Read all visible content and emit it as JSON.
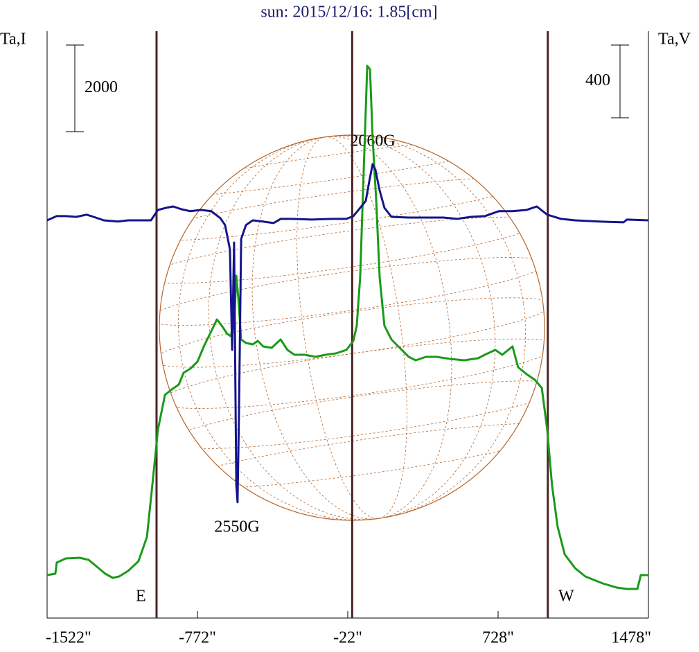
{
  "chart_data": {
    "type": "line",
    "title": "sun: 2015/12/16: 1.85[cm]",
    "y_label": "Ta,I",
    "y2_label": "Ta,V",
    "xlim": [
      -1522,
      1478
    ],
    "xticks": [
      {
        "value": -1522,
        "label": "-1522\""
      },
      {
        "value": -772,
        "label": "-772\""
      },
      {
        "value": -22,
        "label": "-22\""
      },
      {
        "value": 728,
        "label": "728\""
      },
      {
        "value": 1478,
        "label": "1478\""
      }
    ],
    "ylim": [
      0,
      13552
    ],
    "y2lim": [
      -2191,
      1036
    ],
    "scale_bars": [
      {
        "axis": "y",
        "value": 2000
      },
      {
        "axis": "y2",
        "value": 400
      }
    ],
    "vlines": [
      -976,
      0,
      976
    ],
    "annotations": [
      "E",
      "W",
      "2060G",
      "2550G"
    ],
    "series": [
      {
        "name": "Ta,I",
        "color": "#1a9a1a",
        "x": [
          -1522,
          -1481,
          -1474,
          -1429,
          -1360,
          -1315,
          -1273,
          -1232,
          -1194,
          -1163,
          -1118,
          -1066,
          -1024,
          -997,
          -969,
          -934,
          -900,
          -865,
          -841,
          -807,
          -772,
          -737,
          -703,
          -675,
          -651,
          -623,
          -606,
          -589,
          -578,
          -568,
          -554,
          -530,
          -496,
          -471,
          -444,
          -402,
          -357,
          -323,
          -288,
          -236,
          -184,
          -133,
          -81,
          -29,
          6,
          23,
          40,
          57,
          75,
          89,
          102,
          120,
          137,
          161,
          196,
          230,
          282,
          317,
          368,
          420,
          489,
          559,
          628,
          662,
          714,
          749,
          800,
          828,
          870,
          911,
          946,
          973,
          997,
          1025,
          1060,
          1112,
          1163,
          1250,
          1319,
          1371,
          1423,
          1440,
          1478
        ],
        "values": [
          992,
          1024,
          1280,
          1376,
          1392,
          1344,
          1184,
          1024,
          928,
          960,
          1088,
          1312,
          1872,
          3072,
          4352,
          5152,
          5280,
          5392,
          5664,
          5760,
          5920,
          6304,
          6624,
          6896,
          6752,
          6560,
          6512,
          6752,
          7904,
          7392,
          6432,
          6352,
          6320,
          6400,
          6272,
          6240,
          6432,
          6192,
          6080,
          6080,
          6032,
          6080,
          6112,
          6192,
          6400,
          6752,
          7872,
          10272,
          12752,
          12672,
          11072,
          9632,
          7872,
          6752,
          6432,
          6272,
          6032,
          5952,
          6032,
          6032,
          5984,
          5952,
          6000,
          6080,
          6192,
          6080,
          6272,
          5792,
          5632,
          5504,
          5312,
          4352,
          3072,
          2112,
          1472,
          1152,
          960,
          800,
          704,
          672,
          672,
          992,
          992
        ]
      },
      {
        "name": "Ta,V",
        "color": "#14148c",
        "axis": "y2",
        "x": [
          -1522,
          -1474,
          -1429,
          -1377,
          -1325,
          -1290,
          -1239,
          -1169,
          -1118,
          -1066,
          -1004,
          -969,
          -928,
          -893,
          -852,
          -807,
          -755,
          -703,
          -658,
          -634,
          -610,
          -599,
          -589,
          -578,
          -572,
          -565,
          -554,
          -530,
          -496,
          -444,
          -392,
          -357,
          -305,
          -202,
          -98,
          -29,
          6,
          40,
          68,
          85,
          102,
          116,
          137,
          161,
          196,
          282,
          455,
          524,
          593,
          662,
          731,
          800,
          870,
          921,
          973,
          1042,
          1112,
          1233,
          1354,
          1371,
          1478
        ],
        "values": [
          -4,
          19,
          19,
          15,
          27,
          15,
          -4,
          -11,
          -4,
          -4,
          -4,
          53,
          65,
          72,
          57,
          46,
          53,
          46,
          8,
          -30,
          -164,
          -716,
          -126,
          -1459,
          -1554,
          -1078,
          -107,
          -30,
          -4,
          -11,
          -19,
          4,
          4,
          0,
          4,
          4,
          19,
          65,
          103,
          210,
          305,
          274,
          160,
          65,
          15,
          11,
          11,
          4,
          15,
          19,
          46,
          46,
          53,
          72,
          27,
          4,
          -4,
          -11,
          -15,
          0,
          -4
        ]
      }
    ]
  }
}
